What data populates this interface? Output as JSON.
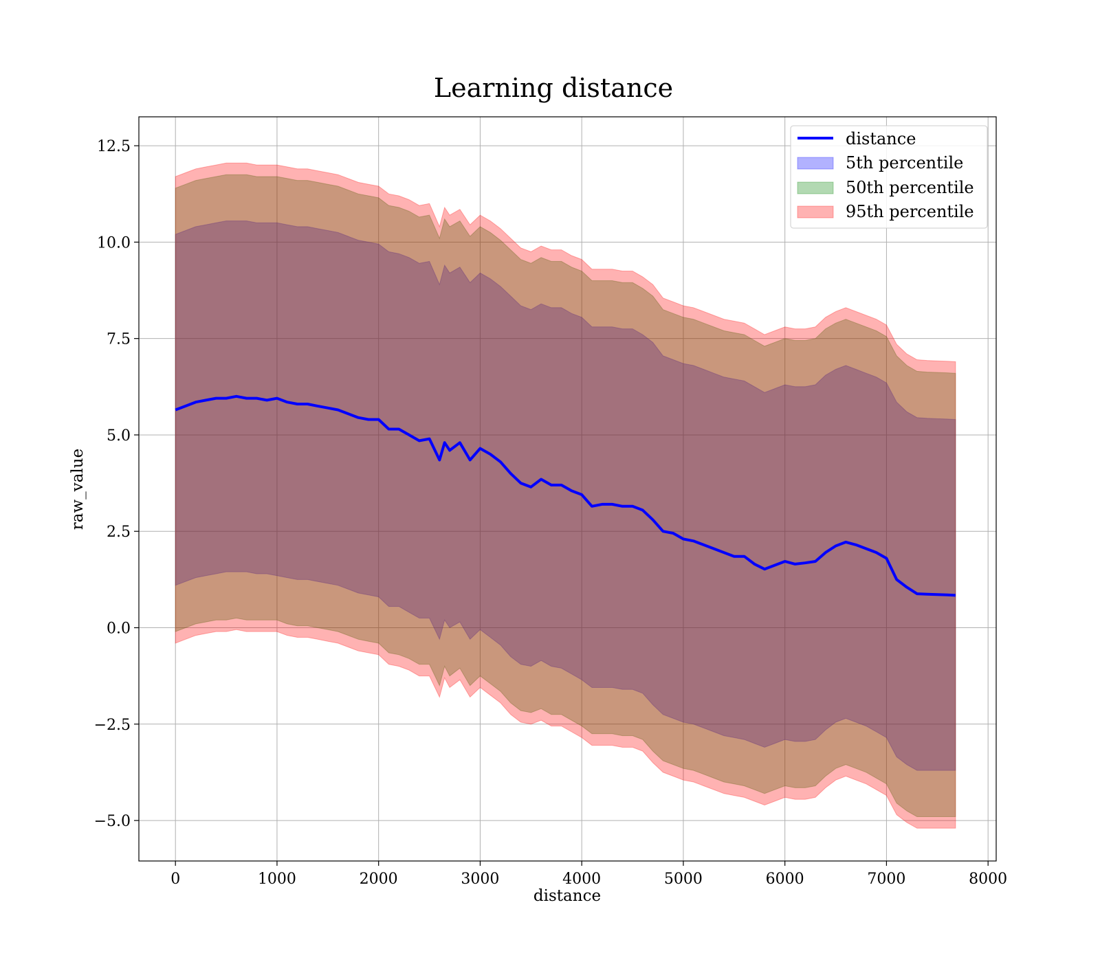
{
  "chart_data": {
    "type": "line",
    "title": "Learning distance",
    "xlabel": "distance",
    "ylabel": "raw_value",
    "xlim": [
      -360,
      8080
    ],
    "ylim": [
      -6.05,
      13.25
    ],
    "xticks": [
      0,
      1000,
      2000,
      3000,
      4000,
      5000,
      6000,
      7000,
      8000
    ],
    "yticks": [
      -5.0,
      -2.5,
      0.0,
      2.5,
      5.0,
      7.5,
      10.0,
      12.5
    ],
    "xtick_labels": [
      "0",
      "1000",
      "2000",
      "3000",
      "4000",
      "5000",
      "6000",
      "7000",
      "8000"
    ],
    "ytick_labels": [
      "−5.0",
      "−2.5",
      "0.0",
      "2.5",
      "5.0",
      "7.5",
      "10.0",
      "12.5"
    ],
    "grid": true,
    "legend_position": "top-right",
    "x": [
      0,
      100,
      200,
      300,
      400,
      500,
      600,
      700,
      800,
      900,
      1000,
      1100,
      1200,
      1300,
      1400,
      1500,
      1600,
      1700,
      1800,
      1900,
      2000,
      2100,
      2200,
      2300,
      2400,
      2500,
      2600,
      2650,
      2700,
      2800,
      2900,
      3000,
      3100,
      3200,
      3300,
      3400,
      3500,
      3600,
      3700,
      3800,
      3900,
      4000,
      4100,
      4200,
      4300,
      4400,
      4500,
      4600,
      4700,
      4800,
      4900,
      5000,
      5100,
      5200,
      5300,
      5400,
      5500,
      5600,
      5700,
      5800,
      5900,
      6000,
      6100,
      6200,
      6300,
      6400,
      6500,
      6600,
      6700,
      6800,
      6900,
      7000,
      7100,
      7200,
      7300,
      7400,
      7500,
      7600,
      7680
    ],
    "series": [
      {
        "name": "distance",
        "kind": "line",
        "color": "#0000ff",
        "values": [
          5.65,
          5.75,
          5.85,
          5.9,
          5.95,
          5.95,
          6.0,
          5.95,
          5.95,
          5.9,
          5.95,
          5.85,
          5.8,
          5.8,
          5.75,
          5.7,
          5.65,
          5.55,
          5.45,
          5.4,
          5.4,
          5.15,
          5.15,
          5.0,
          4.85,
          4.9,
          4.35,
          4.8,
          4.6,
          4.8,
          4.35,
          4.65,
          4.5,
          4.3,
          4.0,
          3.75,
          3.65,
          3.85,
          3.7,
          3.7,
          3.55,
          3.45,
          3.15,
          3.2,
          3.2,
          3.15,
          3.15,
          3.05,
          2.8,
          2.5,
          2.45,
          2.3,
          2.25,
          2.15,
          2.05,
          1.95,
          1.85,
          1.85,
          1.65,
          1.52,
          1.62,
          1.72,
          1.65,
          1.68,
          1.72,
          1.95,
          2.12,
          2.22,
          2.15,
          2.05,
          1.95,
          1.8,
          1.25,
          1.05,
          0.88,
          0.87,
          0.86,
          0.85,
          0.84
        ]
      },
      {
        "name": "5th percentile",
        "kind": "band",
        "color": "#0000ff",
        "lower": [
          1.1,
          1.2,
          1.3,
          1.35,
          1.4,
          1.45,
          1.45,
          1.45,
          1.4,
          1.4,
          1.35,
          1.3,
          1.25,
          1.25,
          1.2,
          1.15,
          1.1,
          1.0,
          0.9,
          0.85,
          0.8,
          0.55,
          0.55,
          0.4,
          0.25,
          0.25,
          -0.3,
          0.2,
          0.0,
          0.15,
          -0.3,
          -0.05,
          -0.25,
          -0.45,
          -0.75,
          -0.95,
          -1.0,
          -0.85,
          -1.0,
          -1.05,
          -1.2,
          -1.35,
          -1.55,
          -1.55,
          -1.55,
          -1.6,
          -1.6,
          -1.7,
          -2.0,
          -2.25,
          -2.35,
          -2.45,
          -2.5,
          -2.6,
          -2.7,
          -2.8,
          -2.85,
          -2.9,
          -3.0,
          -3.1,
          -3.0,
          -2.9,
          -2.95,
          -2.95,
          -2.9,
          -2.65,
          -2.45,
          -2.35,
          -2.45,
          -2.55,
          -2.7,
          -2.85,
          -3.35,
          -3.55,
          -3.7,
          -3.7,
          -3.7,
          -3.7,
          -3.7
        ],
        "upper": [
          10.2,
          10.3,
          10.4,
          10.45,
          10.5,
          10.55,
          10.55,
          10.55,
          10.5,
          10.5,
          10.5,
          10.45,
          10.4,
          10.4,
          10.35,
          10.3,
          10.25,
          10.15,
          10.05,
          10.0,
          9.95,
          9.75,
          9.7,
          9.6,
          9.45,
          9.5,
          8.9,
          9.4,
          9.2,
          9.35,
          8.95,
          9.2,
          9.05,
          8.85,
          8.6,
          8.35,
          8.25,
          8.4,
          8.3,
          8.3,
          8.15,
          8.05,
          7.8,
          7.8,
          7.8,
          7.75,
          7.75,
          7.6,
          7.4,
          7.05,
          6.95,
          6.85,
          6.8,
          6.7,
          6.6,
          6.5,
          6.45,
          6.4,
          6.25,
          6.1,
          6.2,
          6.3,
          6.25,
          6.25,
          6.3,
          6.55,
          6.7,
          6.8,
          6.7,
          6.6,
          6.5,
          6.35,
          5.85,
          5.6,
          5.45,
          5.43,
          5.42,
          5.41,
          5.4
        ]
      },
      {
        "name": "50th percentile",
        "kind": "band",
        "color": "#008000",
        "lower": [
          -0.1,
          0.0,
          0.1,
          0.15,
          0.2,
          0.2,
          0.25,
          0.2,
          0.2,
          0.2,
          0.2,
          0.1,
          0.05,
          0.05,
          0.0,
          -0.05,
          -0.1,
          -0.2,
          -0.3,
          -0.35,
          -0.4,
          -0.65,
          -0.7,
          -0.8,
          -0.95,
          -0.95,
          -1.5,
          -1.0,
          -1.25,
          -1.05,
          -1.5,
          -1.25,
          -1.45,
          -1.65,
          -1.95,
          -2.15,
          -2.2,
          -2.1,
          -2.25,
          -2.25,
          -2.4,
          -2.55,
          -2.75,
          -2.75,
          -2.75,
          -2.8,
          -2.8,
          -2.9,
          -3.2,
          -3.45,
          -3.55,
          -3.65,
          -3.7,
          -3.8,
          -3.9,
          -4.0,
          -4.05,
          -4.1,
          -4.2,
          -4.3,
          -4.2,
          -4.1,
          -4.15,
          -4.15,
          -4.1,
          -3.85,
          -3.65,
          -3.55,
          -3.65,
          -3.75,
          -3.9,
          -4.05,
          -4.55,
          -4.75,
          -4.9,
          -4.9,
          -4.9,
          -4.9,
          -4.9
        ],
        "upper": [
          11.4,
          11.5,
          11.6,
          11.65,
          11.7,
          11.75,
          11.75,
          11.75,
          11.7,
          11.7,
          11.7,
          11.65,
          11.6,
          11.6,
          11.55,
          11.5,
          11.45,
          11.35,
          11.25,
          11.2,
          11.15,
          10.95,
          10.9,
          10.8,
          10.65,
          10.7,
          10.1,
          10.6,
          10.4,
          10.55,
          10.15,
          10.4,
          10.25,
          10.05,
          9.8,
          9.55,
          9.45,
          9.6,
          9.5,
          9.5,
          9.35,
          9.25,
          9.0,
          9.0,
          9.0,
          8.95,
          8.95,
          8.8,
          8.6,
          8.25,
          8.15,
          8.05,
          8.0,
          7.9,
          7.8,
          7.7,
          7.65,
          7.6,
          7.45,
          7.3,
          7.4,
          7.5,
          7.45,
          7.45,
          7.5,
          7.75,
          7.9,
          8.0,
          7.9,
          7.8,
          7.7,
          7.55,
          7.05,
          6.8,
          6.65,
          6.63,
          6.62,
          6.61,
          6.6
        ]
      },
      {
        "name": "95th percentile",
        "kind": "band",
        "color": "#ff0000",
        "lower": [
          -0.4,
          -0.3,
          -0.2,
          -0.15,
          -0.1,
          -0.1,
          -0.05,
          -0.1,
          -0.1,
          -0.1,
          -0.1,
          -0.2,
          -0.25,
          -0.25,
          -0.3,
          -0.35,
          -0.4,
          -0.5,
          -0.6,
          -0.65,
          -0.7,
          -0.95,
          -1.0,
          -1.1,
          -1.25,
          -1.25,
          -1.8,
          -1.3,
          -1.55,
          -1.35,
          -1.8,
          -1.55,
          -1.75,
          -1.95,
          -2.25,
          -2.45,
          -2.5,
          -2.4,
          -2.55,
          -2.55,
          -2.7,
          -2.85,
          -3.05,
          -3.05,
          -3.05,
          -3.1,
          -3.1,
          -3.2,
          -3.5,
          -3.75,
          -3.85,
          -3.95,
          -4.0,
          -4.1,
          -4.2,
          -4.3,
          -4.35,
          -4.4,
          -4.5,
          -4.6,
          -4.5,
          -4.4,
          -4.45,
          -4.45,
          -4.4,
          -4.15,
          -3.95,
          -3.85,
          -3.95,
          -4.05,
          -4.2,
          -4.35,
          -4.85,
          -5.05,
          -5.2,
          -5.2,
          -5.2,
          -5.2,
          -5.2
        ],
        "upper": [
          11.7,
          11.8,
          11.9,
          11.95,
          12.0,
          12.05,
          12.05,
          12.05,
          12.0,
          12.0,
          12.0,
          11.95,
          11.9,
          11.9,
          11.85,
          11.8,
          11.75,
          11.65,
          11.55,
          11.5,
          11.45,
          11.25,
          11.2,
          11.1,
          10.95,
          11.0,
          10.4,
          10.9,
          10.7,
          10.85,
          10.45,
          10.7,
          10.55,
          10.35,
          10.1,
          9.85,
          9.75,
          9.9,
          9.8,
          9.8,
          9.65,
          9.55,
          9.3,
          9.3,
          9.3,
          9.25,
          9.25,
          9.1,
          8.9,
          8.55,
          8.45,
          8.35,
          8.3,
          8.2,
          8.1,
          8.0,
          7.95,
          7.9,
          7.75,
          7.6,
          7.7,
          7.8,
          7.75,
          7.75,
          7.8,
          8.05,
          8.2,
          8.3,
          8.2,
          8.1,
          8.0,
          7.85,
          7.35,
          7.1,
          6.95,
          6.93,
          6.92,
          6.91,
          6.9
        ]
      }
    ]
  }
}
